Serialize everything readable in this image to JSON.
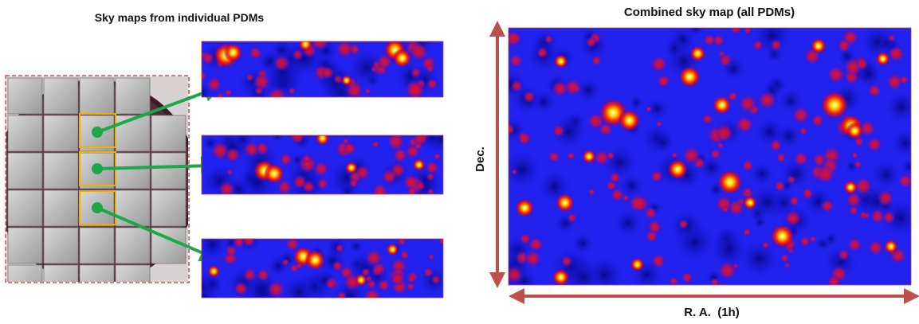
{
  "left_title": "Sky maps from individual PDMs",
  "right_title": "Combined sky map (all PDMs)",
  "axes": {
    "y_label": "Dec.",
    "x_label": "R. A.  (1h)"
  }
}
